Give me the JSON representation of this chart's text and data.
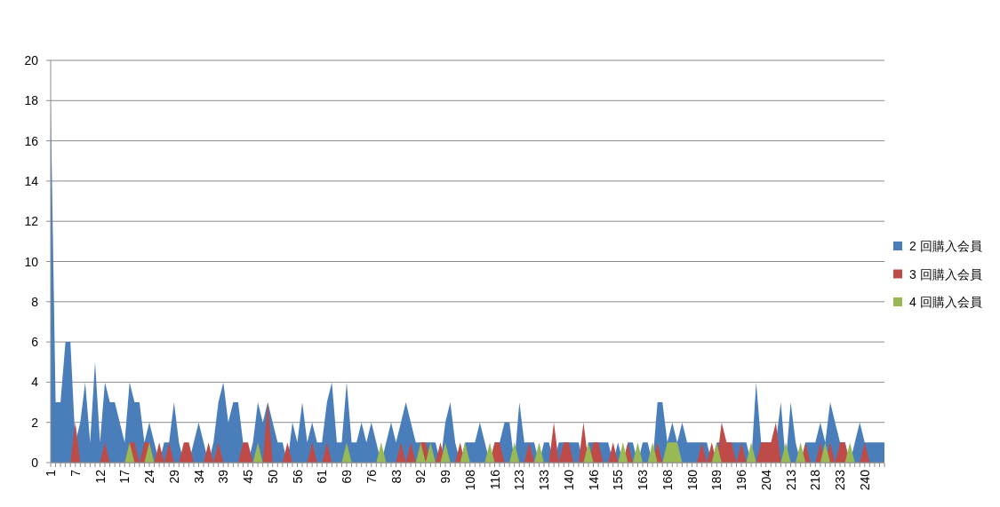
{
  "chart_data": {
    "type": "area",
    "categories": [
      "1",
      null,
      null,
      null,
      null,
      "7",
      null,
      null,
      null,
      null,
      "12",
      null,
      null,
      null,
      null,
      "17",
      null,
      null,
      null,
      null,
      "24",
      null,
      null,
      null,
      null,
      "29",
      null,
      null,
      null,
      null,
      "34",
      null,
      null,
      null,
      null,
      "39",
      null,
      null,
      null,
      null,
      "45",
      null,
      null,
      null,
      null,
      "50",
      null,
      null,
      null,
      null,
      "56",
      null,
      null,
      null,
      null,
      "61",
      null,
      null,
      null,
      null,
      "69",
      null,
      null,
      null,
      null,
      "76",
      null,
      null,
      null,
      null,
      "83",
      null,
      null,
      null,
      null,
      "92",
      null,
      null,
      null,
      null,
      "99",
      null,
      null,
      null,
      null,
      "108",
      null,
      null,
      null,
      null,
      "116",
      null,
      null,
      null,
      null,
      "123",
      null,
      null,
      null,
      null,
      "133",
      null,
      null,
      null,
      null,
      "140",
      null,
      null,
      null,
      null,
      "146",
      null,
      null,
      null,
      null,
      "155",
      null,
      null,
      null,
      null,
      "163",
      null,
      null,
      null,
      null,
      "168",
      null,
      null,
      null,
      null,
      "180",
      null,
      null,
      null,
      null,
      "189",
      null,
      null,
      null,
      null,
      "196",
      null,
      null,
      null,
      null,
      "204",
      null,
      null,
      null,
      null,
      "213",
      null,
      null,
      null,
      null,
      "218",
      null,
      null,
      null,
      null,
      "233",
      null,
      null,
      null,
      null,
      "240",
      null,
      null,
      null,
      null
    ],
    "ylim": [
      0,
      20
    ],
    "yticks": [
      0,
      2,
      4,
      6,
      8,
      10,
      12,
      14,
      16,
      18,
      20
    ],
    "grid": "y",
    "legend": "right",
    "series": [
      {
        "name": "2 回購入会員",
        "color": "#4a7ebb",
        "values": [
          18,
          3,
          3,
          6,
          6,
          1,
          2,
          4,
          1,
          5,
          1,
          4,
          3,
          3,
          2,
          1,
          4,
          3,
          3,
          1,
          2,
          1,
          0,
          1,
          1,
          3,
          1,
          0,
          0,
          1,
          2,
          1,
          0,
          1,
          3,
          4,
          2,
          3,
          3,
          1,
          0,
          1,
          3,
          2,
          3,
          2,
          1,
          1,
          0,
          2,
          1,
          3,
          1,
          2,
          1,
          1,
          3,
          4,
          1,
          1,
          4,
          1,
          1,
          2,
          1,
          2,
          1,
          0,
          1,
          2,
          1,
          2,
          3,
          2,
          1,
          1,
          1,
          1,
          1,
          0,
          2,
          3,
          1,
          0,
          1,
          1,
          1,
          2,
          1,
          0,
          1,
          1,
          2,
          2,
          0,
          3,
          1,
          1,
          1,
          0,
          1,
          1,
          0,
          1,
          1,
          1,
          1,
          1,
          0,
          1,
          1,
          1,
          1,
          1,
          0,
          1,
          0,
          1,
          1,
          0,
          1,
          1,
          0,
          3,
          3,
          1,
          2,
          1,
          2,
          1,
          1,
          1,
          1,
          1,
          0,
          1,
          1,
          1,
          1,
          1,
          1,
          1,
          0,
          4,
          1,
          1,
          1,
          1,
          3,
          0,
          3,
          1,
          0,
          1,
          1,
          1,
          2,
          1,
          3,
          2,
          1,
          1,
          0,
          1,
          2,
          1,
          1,
          1,
          1,
          1
        ]
      },
      {
        "name": "3 回購入会員",
        "color": "#be4b48",
        "values": [
          0,
          0,
          0,
          0,
          0,
          2,
          0,
          0,
          0,
          0,
          0,
          1,
          0,
          0,
          0,
          0,
          1,
          1,
          0,
          1,
          1,
          0,
          1,
          0,
          1,
          0,
          0,
          1,
          1,
          0,
          0,
          0,
          1,
          0,
          1,
          0,
          0,
          0,
          0,
          1,
          1,
          0,
          0,
          0,
          3,
          0,
          0,
          0,
          1,
          0,
          0,
          0,
          0,
          1,
          0,
          0,
          1,
          0,
          0,
          0,
          0,
          0,
          0,
          0,
          0,
          0,
          0,
          0,
          0,
          0,
          0,
          1,
          0,
          1,
          0,
          1,
          1,
          0,
          0,
          1,
          0,
          0,
          0,
          1,
          0,
          0,
          0,
          0,
          0,
          0,
          1,
          1,
          0,
          0,
          0,
          0,
          0,
          1,
          0,
          0,
          0,
          0,
          2,
          0,
          1,
          1,
          0,
          0,
          2,
          0,
          1,
          1,
          0,
          0,
          1,
          0,
          0,
          1,
          0,
          0,
          0,
          0,
          0,
          1,
          0,
          0,
          0,
          0,
          0,
          0,
          0,
          0,
          1,
          0,
          1,
          0,
          2,
          1,
          1,
          0,
          1,
          0,
          0,
          0,
          1,
          1,
          1,
          2,
          0,
          0,
          0,
          0,
          0,
          1,
          0,
          0,
          1,
          0,
          1,
          0,
          1,
          1,
          0,
          0,
          0,
          1,
          0,
          0,
          0,
          0
        ]
      },
      {
        "name": "4 回購入会員",
        "color": "#98b954",
        "values": [
          0,
          0,
          0,
          0,
          0,
          0,
          0,
          0,
          0,
          0,
          0,
          0,
          0,
          0,
          0,
          0,
          1,
          0,
          0,
          0,
          1,
          0,
          0,
          0,
          0,
          0,
          0,
          0,
          0,
          0,
          0,
          0,
          0,
          0,
          0,
          0,
          0,
          0,
          0,
          0,
          0,
          0,
          1,
          0,
          0,
          0,
          0,
          0,
          0,
          0,
          0,
          0,
          0,
          0,
          0,
          0,
          0,
          0,
          0,
          0,
          1,
          0,
          0,
          0,
          0,
          0,
          0,
          1,
          0,
          0,
          0,
          0,
          0,
          0,
          0,
          1,
          0,
          1,
          0,
          0,
          1,
          0,
          0,
          0,
          1,
          0,
          0,
          0,
          0,
          1,
          0,
          0,
          0,
          0,
          1,
          0,
          0,
          0,
          0,
          1,
          0,
          0,
          0,
          0,
          0,
          0,
          0,
          0,
          0,
          1,
          0,
          0,
          0,
          0,
          0,
          0,
          1,
          0,
          0,
          1,
          0,
          0,
          1,
          0,
          0,
          1,
          1,
          1,
          0,
          0,
          0,
          0,
          0,
          0,
          0,
          1,
          0,
          0,
          0,
          0,
          0,
          0,
          1,
          0,
          0,
          0,
          0,
          0,
          0,
          1,
          0,
          0,
          1,
          0,
          0,
          0,
          0,
          1,
          0,
          0,
          0,
          0,
          1,
          0,
          0,
          0,
          0,
          0,
          0,
          0
        ]
      }
    ]
  }
}
